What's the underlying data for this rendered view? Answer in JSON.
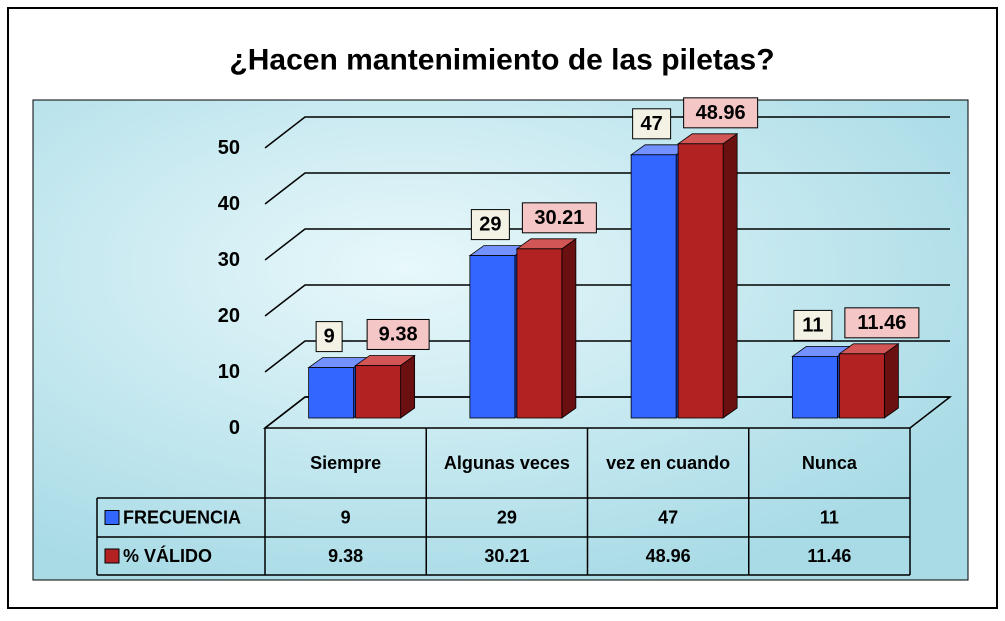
{
  "chart_data": {
    "type": "bar3d",
    "title": "¿Hacen mantenimiento de las piletas?",
    "categories": [
      "Siempre",
      "Algunas veces",
      "vez en cuando",
      "Nunca"
    ],
    "series": [
      {
        "name": "FRECUENCIA",
        "color": "#3366ff",
        "values": [
          9,
          29,
          47,
          11
        ]
      },
      {
        "name": "% VÁLIDO",
        "color": "#b22222",
        "values": [
          9.38,
          30.21,
          48.96,
          11.46
        ]
      }
    ],
    "ylim": [
      0,
      50
    ],
    "yticks": [
      0,
      10,
      20,
      30,
      40,
      50
    ],
    "grid": true
  }
}
